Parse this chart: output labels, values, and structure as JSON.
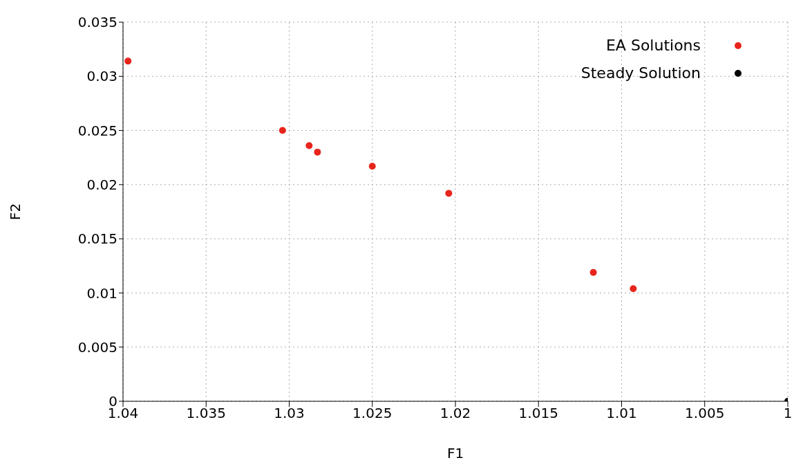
{
  "chart_data": {
    "type": "scatter",
    "xlabel": "F1",
    "ylabel": "F2",
    "xlim": [
      1.04,
      1
    ],
    "xticks": [
      1.04,
      1.035,
      1.03,
      1.025,
      1.02,
      1.015,
      1.01,
      1.005,
      1
    ],
    "ylim": [
      0,
      0.035
    ],
    "yticks": [
      0,
      0.005,
      0.01,
      0.015,
      0.02,
      0.025,
      0.03,
      0.035
    ],
    "grid": true,
    "legend": "top right",
    "marker": "circle",
    "series": [
      {
        "name": "EA Solutions",
        "color": "#e8251c",
        "x": [
          1.0397,
          1.0304,
          1.0288,
          1.0283,
          1.025,
          1.0204,
          1.0117,
          1.0093
        ],
        "values": [
          0.0314,
          0.025,
          0.0236,
          0.023,
          0.0217,
          0.0192,
          0.0119,
          0.0104
        ]
      },
      {
        "name": "Steady Solution",
        "color": "#000000",
        "x": [
          1.0
        ],
        "values": [
          0
        ]
      }
    ]
  }
}
